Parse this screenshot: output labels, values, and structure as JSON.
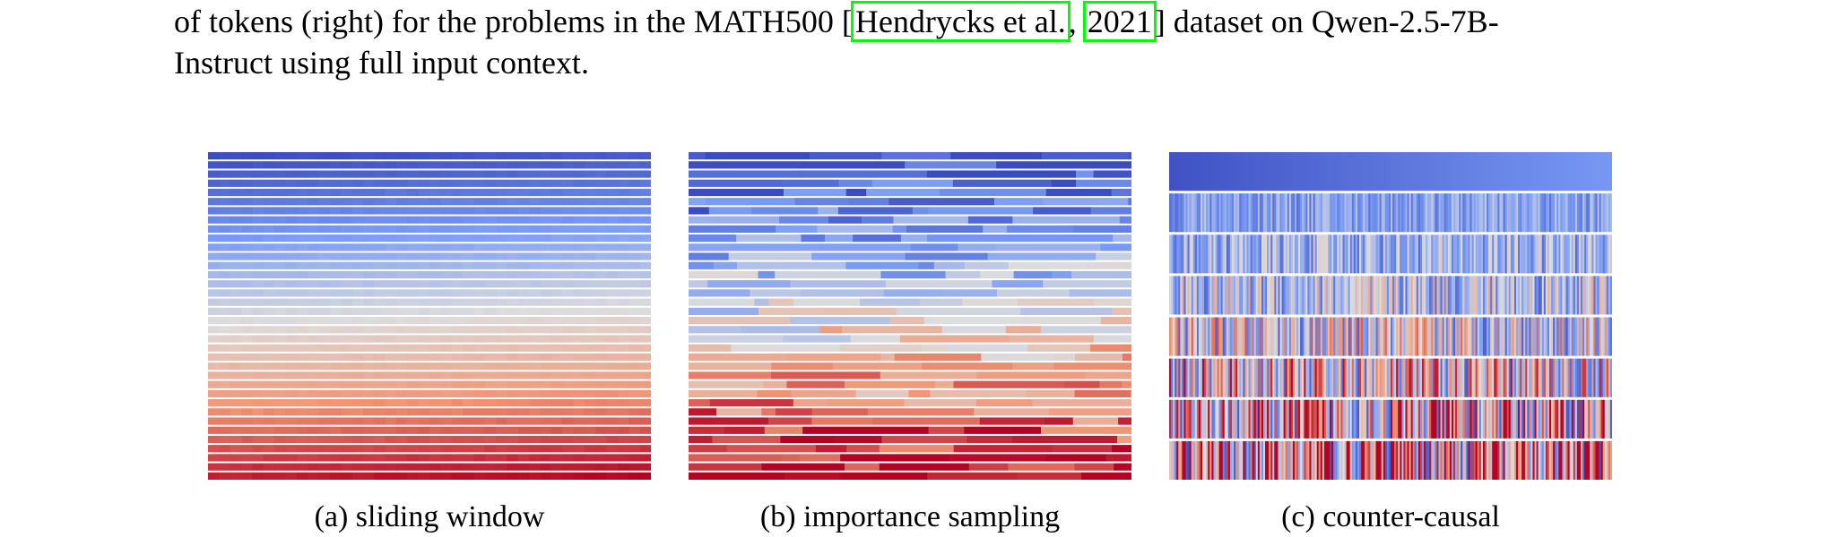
{
  "caption": {
    "line1_before": "of tokens (right) for the problems in the MATH500 [",
    "cite_author": "Hendrycks et al.",
    "cite_sep": ", ",
    "cite_year": "2021",
    "line1_after": "] dataset on Qwen-2.5-7B-",
    "line2": "Instruct using full input context."
  },
  "subfigures": [
    {
      "label": "(a) sliding window"
    },
    {
      "label": "(b) importance sampling"
    },
    {
      "label": "(c) counter-causal"
    }
  ],
  "colormap": {
    "low": "#3b4cc0",
    "mid": "#dddddd",
    "high": "#b40426"
  }
}
